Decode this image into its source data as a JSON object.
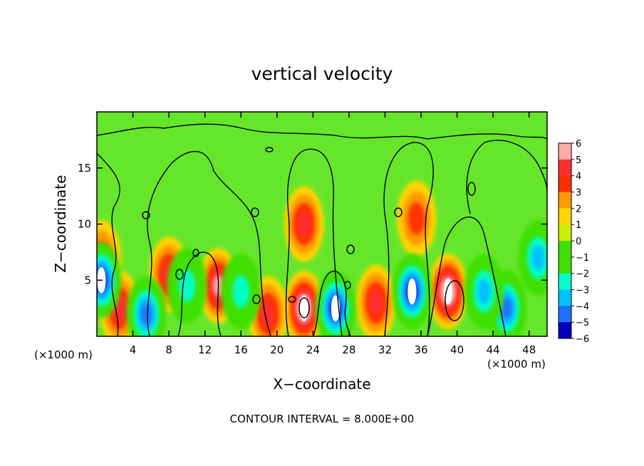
{
  "chart_data": {
    "type": "heatmap",
    "title": "vertical velocity",
    "xlabel": "X−coordinate",
    "ylabel": "Z−coordinate",
    "x_unit": "(×1000 m)",
    "x_unit_right": "(×1000 m)",
    "footer": "CONTOUR INTERVAL = 8.000E+00",
    "xlim": [
      0,
      50
    ],
    "ylim": [
      0,
      20
    ],
    "x_ticks": [
      4,
      8,
      12,
      16,
      20,
      24,
      28,
      32,
      36,
      40,
      44,
      48
    ],
    "y_ticks": [
      5,
      10,
      15
    ],
    "colorbar": {
      "levels": [
        6,
        5,
        4,
        3,
        2,
        1,
        0,
        -1,
        -2,
        -3,
        -4,
        -5,
        -6
      ],
      "labels": [
        "6",
        "5",
        "4",
        "3",
        "2",
        "1",
        "0",
        "−1",
        "−2",
        "−3",
        "−4",
        "−5",
        "−6"
      ],
      "colors": [
        "#ffaaaa",
        "#ff2f2f",
        "#ff3000",
        "#ff9a00",
        "#ffd400",
        "#c8f000",
        "#40e000",
        "#40e000",
        "#00ffc8",
        "#00c0ff",
        "#2070ff",
        "#0000c0",
        "#8000b0"
      ]
    },
    "features": [
      {
        "kind": "updraft",
        "x": 39,
        "z": 4,
        "peak": 6.5
      },
      {
        "kind": "updraft",
        "x": 23,
        "z": 2.5,
        "peak": 6.3
      },
      {
        "kind": "updraft",
        "x": 23,
        "z": 10,
        "peak": 4.5
      },
      {
        "kind": "updraft",
        "x": 35.5,
        "z": 10.5,
        "peak": 3.5
      },
      {
        "kind": "updraft",
        "x": 13.5,
        "z": 4.5,
        "peak": 5
      },
      {
        "kind": "updraft",
        "x": 2.5,
        "z": 2.5,
        "peak": 4.5
      },
      {
        "kind": "updraft",
        "x": 8,
        "z": 5.5,
        "peak": 4
      },
      {
        "kind": "updraft",
        "x": 31,
        "z": 3,
        "peak": 4
      },
      {
        "kind": "updraft",
        "x": 19,
        "z": 2,
        "peak": 4
      },
      {
        "kind": "updraft",
        "x": 0.5,
        "z": 7,
        "peak": 3
      },
      {
        "kind": "downdraft",
        "x": 26.5,
        "z": 2.5,
        "peak": -6
      },
      {
        "kind": "downdraft",
        "x": 35,
        "z": 4,
        "peak": -6.2
      },
      {
        "kind": "downdraft",
        "x": 45.5,
        "z": 2.5,
        "peak": -5.6
      },
      {
        "kind": "downdraft",
        "x": 5.5,
        "z": 2,
        "peak": -5.6
      },
      {
        "kind": "downdraft",
        "x": 0.5,
        "z": 5,
        "peak": -6
      },
      {
        "kind": "downdraft",
        "x": 43,
        "z": 4,
        "peak": -4
      },
      {
        "kind": "downdraft",
        "x": 49,
        "z": 7,
        "peak": -4.5
      },
      {
        "kind": "downdraft",
        "x": 10,
        "z": 4.5,
        "peak": -3.5
      },
      {
        "kind": "downdraft",
        "x": 16,
        "z": 4,
        "peak": -3
      }
    ]
  }
}
